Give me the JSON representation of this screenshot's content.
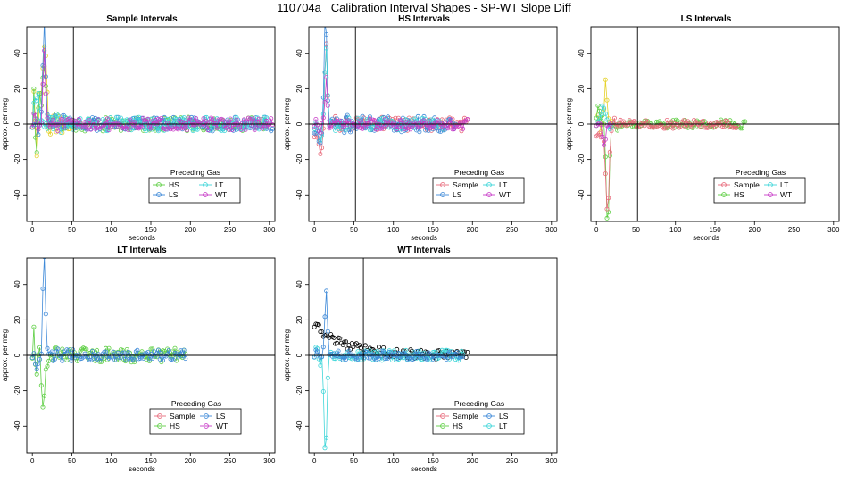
{
  "main_title": "110704a   Calibration Interval Shapes - SP-WT Slope Diff",
  "colors": {
    "Sample": "#e8697a",
    "HS": "#5fcf45",
    "LS": "#3f8ad8",
    "LT": "#3fd6d9",
    "WT": "#c93fc9",
    "yellow_trace": "#e5d22b",
    "Ref": "#000000"
  },
  "chart_data": [
    {
      "type": "line",
      "id": "sample",
      "title": "Sample Intervals",
      "xlabel": "seconds",
      "ylabel": "approx. per meg",
      "xlim": [
        -7,
        307
      ],
      "ylim": [
        -55,
        55
      ],
      "xticks": [
        0,
        50,
        100,
        150,
        200,
        250,
        300
      ],
      "yticks": [
        -40,
        -20,
        0,
        20,
        40
      ],
      "vline": 52,
      "hline": 0,
      "legend": {
        "title": "Preceding Gas",
        "entries": [
          [
            "HS",
            "LT"
          ],
          [
            "LS",
            "WT"
          ]
        ]
      },
      "series": [
        {
          "name": "yellow",
          "color_key": "yellow_trace",
          "x_end": 52,
          "spike": {
            "x": 15,
            "y": 52,
            "width": 3.2
          },
          "osc": {
            "amp": 22,
            "per": 4,
            "decay": 18
          },
          "noise": 3,
          "seed": 11,
          "type": "b"
        },
        {
          "name": "HS",
          "color_key": "HS",
          "x_end": 300,
          "spike": {
            "x": 14,
            "y": 30,
            "width": 4
          },
          "osc": {
            "amp": 26,
            "per": 3.5,
            "decay": 14
          },
          "noise": 4,
          "seed": 21,
          "type": "b"
        },
        {
          "name": "LS",
          "color_key": "LS",
          "x_end": 305,
          "spike": {
            "x": 15,
            "y": 58,
            "width": 2.4
          },
          "osc": {
            "amp": 4,
            "per": 6,
            "decay": 30
          },
          "noise": 4,
          "seed": 31,
          "type": "b"
        },
        {
          "name": "LT",
          "color_key": "LT",
          "x_end": 300,
          "spike": {
            "x": 7,
            "y": 22,
            "width": 3
          },
          "osc": {
            "amp": 8,
            "per": 5,
            "decay": 20
          },
          "noise": 4,
          "seed": 41,
          "type": "b"
        },
        {
          "name": "WT",
          "color_key": "WT",
          "x_end": 305,
          "spike": {
            "x": 15,
            "y": 40,
            "width": 2.2
          },
          "osc": {
            "amp": 4,
            "per": 6,
            "decay": 25
          },
          "noise": 3.5,
          "seed": 51,
          "type": "b"
        }
      ]
    },
    {
      "type": "line",
      "id": "hs",
      "title": "HS Intervals",
      "xlabel": "seconds",
      "ylabel": "approx. per meg",
      "xlim": [
        -7,
        307
      ],
      "ylim": [
        -55,
        55
      ],
      "xticks": [
        0,
        50,
        100,
        150,
        200,
        250,
        300
      ],
      "yticks": [
        -40,
        -20,
        0,
        20,
        40
      ],
      "vline": 52,
      "hline": 0,
      "legend": {
        "title": "Preceding Gas",
        "entries": [
          [
            "Sample",
            "LT"
          ],
          [
            "LS",
            "WT"
          ]
        ]
      },
      "series": [
        {
          "name": "Sample",
          "color_key": "Sample",
          "x_end": 195,
          "spike": {
            "x": 15,
            "y": 40,
            "width": 2.4
          },
          "pre": -14,
          "osc": {
            "amp": 4,
            "per": 6,
            "decay": 25
          },
          "noise": 4,
          "seed": 61,
          "type": "b"
        },
        {
          "name": "LS",
          "color_key": "LS",
          "x_end": 180,
          "spike": {
            "x": 14,
            "y": 62,
            "width": 2.6
          },
          "pre": -10,
          "osc": {
            "amp": 5,
            "per": 5,
            "decay": 25
          },
          "noise": 4.5,
          "seed": 71,
          "type": "b"
        },
        {
          "name": "LT",
          "color_key": "LT",
          "x_end": 165,
          "spike": {
            "x": 15,
            "y": 45,
            "width": 2.4
          },
          "pre": -5,
          "osc": {
            "amp": 4,
            "per": 5,
            "decay": 25
          },
          "noise": 3.5,
          "seed": 81,
          "type": "b"
        },
        {
          "name": "WT",
          "color_key": "WT",
          "x_end": 195,
          "spike": {
            "x": 15,
            "y": 25,
            "width": 2.2
          },
          "osc": {
            "amp": 3,
            "per": 5,
            "decay": 25
          },
          "noise": 3,
          "seed": 91,
          "type": "b"
        }
      ]
    },
    {
      "type": "line",
      "id": "ls",
      "title": "LS Intervals",
      "xlabel": "seconds",
      "ylabel": "approx. per meg",
      "xlim": [
        -7,
        307
      ],
      "ylim": [
        -55,
        55
      ],
      "xticks": [
        0,
        50,
        100,
        150,
        200,
        250,
        300
      ],
      "yticks": [
        -40,
        -20,
        0,
        20,
        40
      ],
      "vline": 52,
      "hline": 0,
      "legend": {
        "title": "Preceding Gas",
        "entries": [
          [
            "Sample",
            "LT"
          ],
          [
            "HS",
            "WT"
          ]
        ]
      },
      "series": [
        {
          "name": "yellow",
          "color_key": "yellow_trace",
          "x_end": 22,
          "spike": {
            "x": 12,
            "y": 24,
            "width": 2.2
          },
          "osc": {
            "amp": 6,
            "per": 4,
            "decay": 15
          },
          "noise": 2,
          "seed": 101,
          "type": "b"
        },
        {
          "name": "HS",
          "color_key": "HS",
          "x_end": 190,
          "spike": {
            "x": 14,
            "y": -58,
            "width": 2.8
          },
          "pre": 6,
          "osc": {
            "amp": 4,
            "per": 5,
            "decay": 25
          },
          "noise": 2.5,
          "seed": 111,
          "type": "b"
        },
        {
          "name": "Sample",
          "color_key": "Sample",
          "x_end": 180,
          "spike": {
            "x": 14,
            "y": -54,
            "width": 2.6
          },
          "pre": -8,
          "osc": {
            "amp": 3,
            "per": 5,
            "decay": 25
          },
          "noise": 2.5,
          "seed": 121,
          "type": "b"
        },
        {
          "name": "LT",
          "color_key": "LT",
          "x_end": 20,
          "spike": {
            "x": 8,
            "y": 12,
            "width": 3
          },
          "osc": {
            "amp": 3,
            "per": 5,
            "decay": 20
          },
          "noise": 2,
          "seed": 131,
          "type": "b"
        },
        {
          "name": "WT",
          "color_key": "WT",
          "x_end": 20,
          "spike": {
            "x": 10,
            "y": -10,
            "width": 3
          },
          "osc": {
            "amp": 2,
            "per": 5,
            "decay": 20
          },
          "noise": 2,
          "seed": 141,
          "type": "b"
        }
      ]
    },
    {
      "type": "line",
      "id": "lt",
      "title": "LT Intervals",
      "xlabel": "seconds",
      "ylabel": "approx. per meg",
      "xlim": [
        -7,
        307
      ],
      "ylim": [
        -55,
        55
      ],
      "xticks": [
        0,
        50,
        100,
        150,
        200,
        250,
        300
      ],
      "yticks": [
        -40,
        -20,
        0,
        20,
        40
      ],
      "vline": 52,
      "hline": 0,
      "legend": {
        "title": "Preceding Gas",
        "entries": [
          [
            "Sample",
            "LS"
          ],
          [
            "HS",
            "WT"
          ]
        ]
      },
      "series": [
        {
          "name": "HS",
          "color_key": "HS",
          "x_end": 195,
          "spike": {
            "x": 14,
            "y": -32,
            "width": 2.6
          },
          "osc": {
            "amp": 14,
            "per": 3.5,
            "decay": 15
          },
          "noise": 4,
          "seed": 151,
          "type": "b"
        },
        {
          "name": "LS",
          "color_key": "LS",
          "x_end": 195,
          "spike": {
            "x": 15,
            "y": 56,
            "width": 2.4
          },
          "pre": -5,
          "osc": {
            "amp": 4,
            "per": 5,
            "decay": 25
          },
          "noise": 3,
          "seed": 161,
          "type": "b"
        }
      ]
    },
    {
      "type": "line",
      "id": "wt",
      "title": "WT Intervals",
      "xlabel": "seconds",
      "ylabel": "approx. per meg",
      "xlim": [
        -7,
        307
      ],
      "ylim": [
        -55,
        55
      ],
      "xticks": [
        0,
        50,
        100,
        150,
        200,
        250,
        300
      ],
      "yticks": [
        -40,
        -20,
        0,
        20,
        40
      ],
      "vline": 62,
      "hline": 0,
      "legend": {
        "title": "Preceding Gas",
        "entries": [
          [
            "Sample",
            "LS"
          ],
          [
            "HS",
            "LT"
          ]
        ]
      },
      "series": [
        {
          "name": "Ref",
          "color_key": "Ref",
          "x_end": 195,
          "start": 17,
          "decay_to": 0,
          "tau": 40,
          "osc": {
            "amp": 0,
            "per": 5,
            "decay": 20
          },
          "noise": 2.5,
          "seed": 171,
          "type": "p"
        },
        {
          "name": "LT",
          "color_key": "LT",
          "x_end": 190,
          "spike": {
            "x": 14,
            "y": -58,
            "width": 2.6
          },
          "osc": {
            "amp": 4,
            "per": 5,
            "decay": 20
          },
          "noise": 3,
          "seed": 181,
          "type": "b"
        },
        {
          "name": "LS",
          "color_key": "LS",
          "x_end": 190,
          "spike": {
            "x": 15,
            "y": 36,
            "width": 2.2
          },
          "osc": {
            "amp": 3,
            "per": 5,
            "decay": 20
          },
          "noise": 2.5,
          "seed": 191,
          "type": "b"
        }
      ]
    }
  ]
}
